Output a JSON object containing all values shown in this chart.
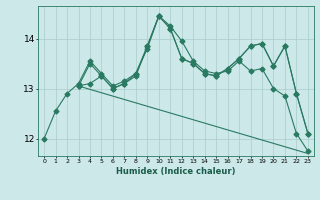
{
  "xlabel": "Humidex (Indice chaleur)",
  "bg_color": "#cce8e8",
  "grid_color": "#aacccc",
  "line_color": "#2a7a62",
  "xlim": [
    -0.5,
    23.5
  ],
  "ylim": [
    11.65,
    14.65
  ],
  "yticks": [
    12,
    13,
    14
  ],
  "xticks": [
    0,
    1,
    2,
    3,
    4,
    5,
    6,
    7,
    8,
    9,
    10,
    11,
    12,
    13,
    14,
    15,
    16,
    17,
    18,
    19,
    20,
    21,
    22,
    23
  ],
  "line1_x": [
    0,
    1,
    2,
    3,
    4,
    5,
    6,
    7,
    8,
    9,
    10,
    11,
    12,
    13,
    14,
    15,
    16,
    17,
    18,
    19,
    20,
    21,
    22,
    23
  ],
  "line1_y": [
    12.0,
    12.55,
    12.9,
    13.1,
    13.55,
    13.3,
    13.05,
    13.15,
    13.3,
    13.8,
    14.45,
    14.25,
    13.95,
    13.55,
    13.35,
    13.3,
    13.35,
    13.55,
    13.35,
    13.4,
    13.0,
    12.85,
    12.1,
    11.75
  ],
  "line2_x": [
    3,
    4,
    5,
    6,
    7,
    8,
    9,
    10,
    11,
    12,
    13,
    14,
    15,
    16,
    17,
    18,
    19,
    20,
    21,
    22,
    23
  ],
  "line2_y": [
    13.05,
    13.5,
    13.25,
    13.0,
    13.1,
    13.3,
    13.85,
    14.45,
    14.2,
    13.6,
    13.5,
    13.3,
    13.25,
    13.4,
    13.6,
    13.85,
    13.9,
    13.45,
    13.85,
    12.9,
    12.1
  ],
  "line3_x": [
    3,
    4,
    5,
    6,
    7,
    8,
    9,
    10,
    11,
    12,
    13,
    14,
    15,
    16,
    17,
    18,
    19,
    20,
    21,
    22,
    23
  ],
  "line3_y": [
    13.05,
    13.1,
    13.25,
    13.0,
    13.1,
    13.25,
    13.85,
    14.45,
    14.2,
    13.6,
    13.5,
    13.3,
    13.25,
    13.4,
    13.6,
    13.85,
    13.9,
    13.45,
    13.85,
    12.9,
    12.1
  ],
  "line4_x": [
    3,
    23
  ],
  "line4_y": [
    13.05,
    11.7
  ]
}
